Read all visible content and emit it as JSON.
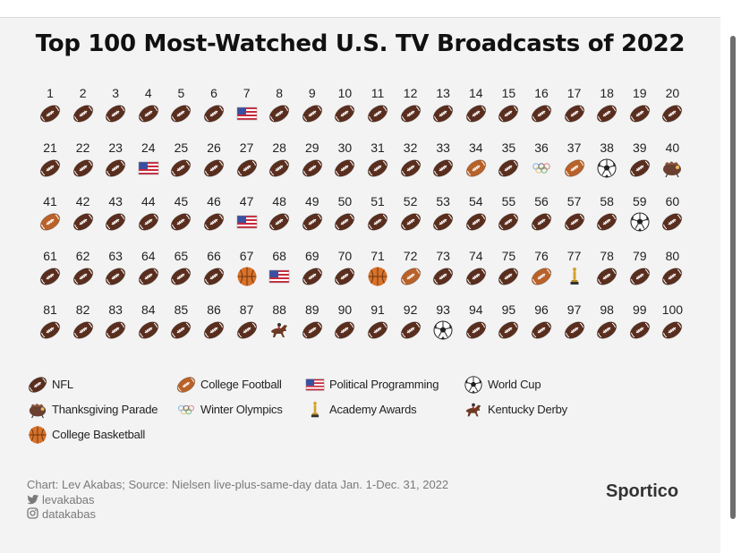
{
  "chart_data": {
    "type": "pictogram",
    "title": "Top 100 Most-Watched U.S. TV Broadcasts of 2022",
    "ranks": [
      1,
      2,
      3,
      4,
      5,
      6,
      7,
      8,
      9,
      10,
      11,
      12,
      13,
      14,
      15,
      16,
      17,
      18,
      19,
      20,
      21,
      22,
      23,
      24,
      25,
      26,
      27,
      28,
      29,
      30,
      31,
      32,
      33,
      34,
      35,
      36,
      37,
      38,
      39,
      40,
      41,
      42,
      43,
      44,
      45,
      46,
      47,
      48,
      49,
      50,
      51,
      52,
      53,
      54,
      55,
      56,
      57,
      58,
      59,
      60,
      61,
      62,
      63,
      64,
      65,
      66,
      67,
      68,
      69,
      70,
      71,
      72,
      73,
      74,
      75,
      76,
      77,
      78,
      79,
      80,
      81,
      82,
      83,
      84,
      85,
      86,
      87,
      88,
      89,
      90,
      91,
      92,
      93,
      94,
      95,
      96,
      97,
      98,
      99,
      100
    ],
    "categories": [
      "nfl",
      "nfl",
      "nfl",
      "nfl",
      "nfl",
      "nfl",
      "political",
      "nfl",
      "nfl",
      "nfl",
      "nfl",
      "nfl",
      "nfl",
      "nfl",
      "nfl",
      "nfl",
      "nfl",
      "nfl",
      "nfl",
      "nfl",
      "nfl",
      "nfl",
      "nfl",
      "political",
      "nfl",
      "nfl",
      "nfl",
      "nfl",
      "nfl",
      "nfl",
      "nfl",
      "nfl",
      "nfl",
      "college_football",
      "nfl",
      "olympics",
      "college_football",
      "world_cup",
      "nfl",
      "parade",
      "college_football",
      "nfl",
      "nfl",
      "nfl",
      "nfl",
      "nfl",
      "political",
      "nfl",
      "nfl",
      "nfl",
      "nfl",
      "nfl",
      "nfl",
      "nfl",
      "nfl",
      "nfl",
      "nfl",
      "nfl",
      "world_cup",
      "nfl",
      "nfl",
      "nfl",
      "nfl",
      "nfl",
      "nfl",
      "nfl",
      "college_basketball",
      "political",
      "nfl",
      "nfl",
      "college_basketball",
      "college_football",
      "nfl",
      "nfl",
      "nfl",
      "college_football",
      "academy_awards",
      "nfl",
      "nfl",
      "nfl",
      "nfl",
      "nfl",
      "nfl",
      "nfl",
      "nfl",
      "nfl",
      "nfl",
      "kentucky_derby",
      "nfl",
      "nfl",
      "nfl",
      "nfl",
      "world_cup",
      "nfl",
      "nfl",
      "nfl",
      "nfl",
      "nfl",
      "nfl",
      "nfl"
    ],
    "legend": [
      {
        "key": "nfl",
        "label": "NFL"
      },
      {
        "key": "college_football",
        "label": "College Football"
      },
      {
        "key": "political",
        "label": "Political Programming"
      },
      {
        "key": "world_cup",
        "label": "World Cup"
      },
      {
        "key": "parade",
        "label": "Thanksgiving Parade"
      },
      {
        "key": "olympics",
        "label": "Winter Olympics"
      },
      {
        "key": "academy_awards",
        "label": "Academy Awards"
      },
      {
        "key": "kentucky_derby",
        "label": "Kentucky Derby"
      },
      {
        "key": "college_basketball",
        "label": "College Basketball"
      }
    ]
  },
  "footer": {
    "credit": "Chart: Lev Akabas; Source: Nielsen live-plus-same-day data Jan. 1-Dec. 31, 2022",
    "twitter": "levakabas",
    "instagram": "datakabas",
    "brand": "Sportico"
  },
  "colors": {
    "nfl_ball": "#5a2e1e",
    "college_ball": "#b8622a",
    "basketball": "#d9722a",
    "background": "#f3f3f3"
  }
}
